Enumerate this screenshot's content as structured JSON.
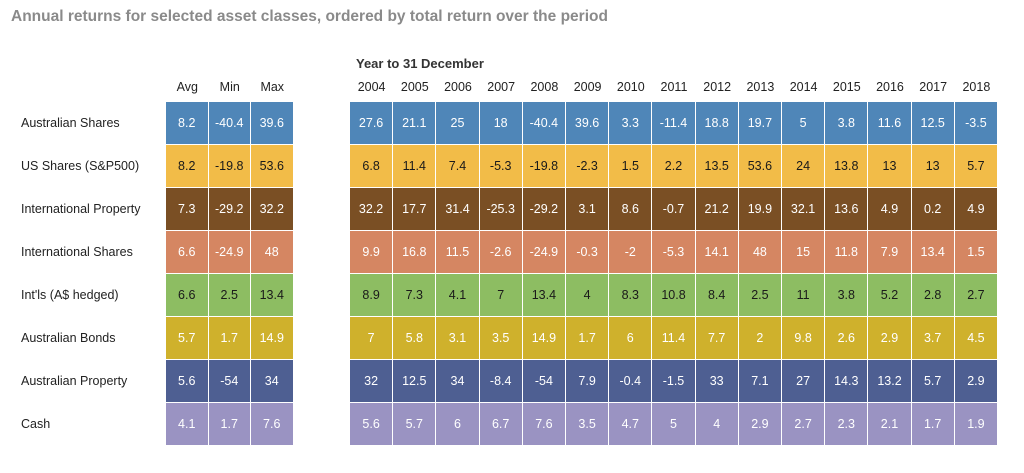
{
  "title": "Annual returns for selected asset classes, ordered by total return over the period",
  "year_heading": "Year to 31 December",
  "chart_data": {
    "type": "table",
    "stat_columns": [
      "Avg",
      "Min",
      "Max"
    ],
    "years": [
      "2004",
      "2005",
      "2006",
      "2007",
      "2008",
      "2009",
      "2010",
      "2011",
      "2012",
      "2013",
      "2014",
      "2015",
      "2016",
      "2017",
      "2018"
    ],
    "rows": [
      {
        "name": "Australian Shares",
        "color": "#4f86b8",
        "text": "light",
        "stats": [
          "8.2",
          "-40.4",
          "39.6"
        ],
        "values": [
          "27.6",
          "21.1",
          "25",
          "18",
          "-40.4",
          "39.6",
          "3.3",
          "-11.4",
          "18.8",
          "19.7",
          "5",
          "3.8",
          "11.6",
          "12.5",
          "-3.5"
        ]
      },
      {
        "name": "US Shares (S&P500)",
        "color": "#f2bc48",
        "text": "dark",
        "stats": [
          "8.2",
          "-19.8",
          "53.6"
        ],
        "values": [
          "6.8",
          "11.4",
          "7.4",
          "-5.3",
          "-19.8",
          "-2.3",
          "1.5",
          "2.2",
          "13.5",
          "53.6",
          "24",
          "13.8",
          "13",
          "13",
          "5.7"
        ]
      },
      {
        "name": "International Property",
        "color": "#7a4f24",
        "text": "light",
        "stats": [
          "7.3",
          "-29.2",
          "32.2"
        ],
        "values": [
          "32.2",
          "17.7",
          "31.4",
          "-25.3",
          "-29.2",
          "3.1",
          "8.6",
          "-0.7",
          "21.2",
          "19.9",
          "32.1",
          "13.6",
          "4.9",
          "0.2",
          "4.9"
        ]
      },
      {
        "name": "International Shares",
        "color": "#d58662",
        "text": "light",
        "stats": [
          "6.6",
          "-24.9",
          "48"
        ],
        "values": [
          "9.9",
          "16.8",
          "11.5",
          "-2.6",
          "-24.9",
          "-0.3",
          "-2",
          "-5.3",
          "14.1",
          "48",
          "15",
          "11.8",
          "7.9",
          "13.4",
          "1.5"
        ]
      },
      {
        "name": "Int'ls (A$ hedged)",
        "color": "#8dbd62",
        "text": "dark",
        "stats": [
          "6.6",
          "2.5",
          "13.4"
        ],
        "values": [
          "8.9",
          "7.3",
          "4.1",
          "7",
          "13.4",
          "4",
          "8.3",
          "10.8",
          "8.4",
          "2.5",
          "11",
          "3.8",
          "5.2",
          "2.8",
          "2.7"
        ]
      },
      {
        "name": "Australian Bonds",
        "color": "#cfb12c",
        "text": "light",
        "stats": [
          "5.7",
          "1.7",
          "14.9"
        ],
        "values": [
          "7",
          "5.8",
          "3.1",
          "3.5",
          "14.9",
          "1.7",
          "6",
          "11.4",
          "7.7",
          "2",
          "9.8",
          "2.6",
          "2.9",
          "3.7",
          "4.5"
        ]
      },
      {
        "name": "Australian Property",
        "color": "#4e5f92",
        "text": "light",
        "stats": [
          "5.6",
          "-54",
          "34"
        ],
        "values": [
          "32",
          "12.5",
          "34",
          "-8.4",
          "-54",
          "7.9",
          "-0.4",
          "-1.5",
          "33",
          "7.1",
          "27",
          "14.3",
          "13.2",
          "5.7",
          "2.9"
        ]
      },
      {
        "name": "Cash",
        "color": "#9a93c2",
        "text": "light",
        "stats": [
          "4.1",
          "1.7",
          "7.6"
        ],
        "values": [
          "5.6",
          "5.7",
          "6",
          "6.7",
          "7.6",
          "3.5",
          "4.7",
          "5",
          "4",
          "2.9",
          "2.7",
          "2.3",
          "2.1",
          "1.7",
          "1.9"
        ]
      }
    ]
  }
}
